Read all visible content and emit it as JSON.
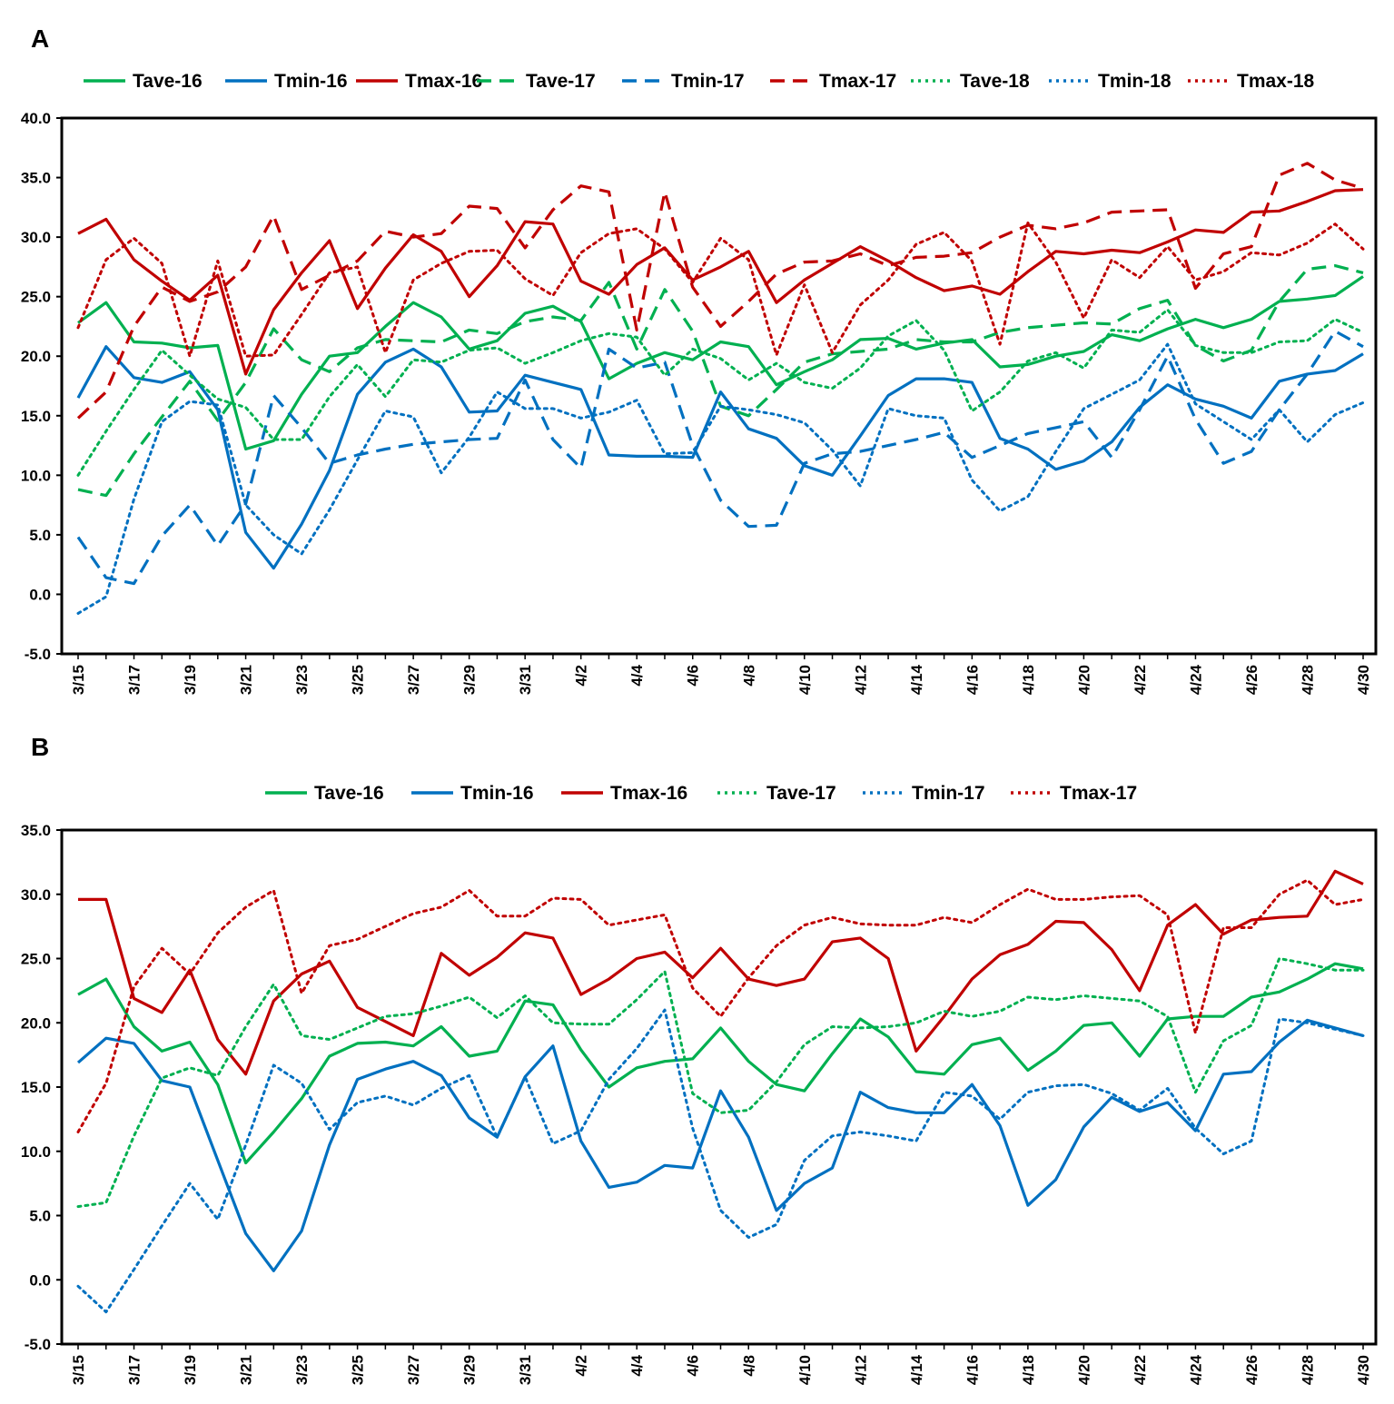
{
  "chart_data": [
    {
      "panel": "A",
      "type": "line",
      "ylim": [
        -5,
        40
      ],
      "ytick_labels": [
        "-5.0",
        "0.0",
        "5.0",
        "10.0",
        "15.0",
        "20.0",
        "25.0",
        "30.0",
        "35.0",
        "40.0"
      ],
      "xtick_labels": [
        "3/15",
        "3/17",
        "3/19",
        "3/21",
        "3/23",
        "3/25",
        "3/27",
        "3/29",
        "3/31",
        "4/2",
        "4/4",
        "4/6",
        "4/8",
        "4/10",
        "4/12",
        "4/14",
        "4/16",
        "4/18",
        "4/20",
        "4/22",
        "4/24",
        "4/26",
        "4/28",
        "4/30"
      ],
      "legend_position": "top",
      "series": [
        {
          "name": "Tave-16",
          "color": "#00B050",
          "style": "solid",
          "values": [
            22.8,
            24.5,
            21.2,
            21.1,
            20.7,
            20.9,
            12.2,
            12.9,
            16.8,
            20.0,
            20.3,
            22.5,
            24.5,
            23.3,
            20.6,
            21.3,
            23.6,
            24.2,
            22.9,
            18.1,
            19.4,
            20.3,
            19.7,
            21.2,
            20.8,
            17.6,
            18.7,
            19.7,
            21.4,
            21.5,
            20.6,
            21.1,
            21.4,
            19.1,
            19.3,
            20.0,
            20.4,
            21.8,
            21.3,
            22.3,
            23.1,
            22.4,
            23.1,
            24.6,
            24.8,
            25.1,
            26.7
          ]
        },
        {
          "name": "Tmin-16",
          "color": "#0070C0",
          "style": "solid",
          "values": [
            16.5,
            20.8,
            18.2,
            17.8,
            18.7,
            15.5,
            5.2,
            2.2,
            5.9,
            10.4,
            16.8,
            19.5,
            20.6,
            19.1,
            15.3,
            15.4,
            18.4,
            17.8,
            17.2,
            11.7,
            11.6,
            11.6,
            11.5,
            17.0,
            13.9,
            13.1,
            10.8,
            10.0,
            13.3,
            16.7,
            18.1,
            18.1,
            17.8,
            13.1,
            12.2,
            10.5,
            11.2,
            12.8,
            15.7,
            17.6,
            16.4,
            15.8,
            14.8,
            17.9,
            18.5,
            18.8,
            20.2
          ]
        },
        {
          "name": "Tmax-16",
          "color": "#C00000",
          "style": "solid",
          "values": [
            30.3,
            31.5,
            28.1,
            26.3,
            24.7,
            26.8,
            18.5,
            23.9,
            27.0,
            29.7,
            24.0,
            27.4,
            30.2,
            28.8,
            25.0,
            27.6,
            31.3,
            31.1,
            26.3,
            25.2,
            27.7,
            29.1,
            26.4,
            27.5,
            28.8,
            24.5,
            26.4,
            27.8,
            29.2,
            28.0,
            26.6,
            25.5,
            25.9,
            25.2,
            27.1,
            28.8,
            28.6,
            28.9,
            28.7,
            29.6,
            30.6,
            30.4,
            32.1,
            32.2,
            33.0,
            33.9,
            34.0
          ]
        },
        {
          "name": "Tave-17",
          "color": "#00B050",
          "style": "dashed",
          "values": [
            8.8,
            8.3,
            11.8,
            14.9,
            17.9,
            14.6,
            17.8,
            22.3,
            19.7,
            18.7,
            20.7,
            21.4,
            21.3,
            21.2,
            22.2,
            21.9,
            22.9,
            23.3,
            23.0,
            26.2,
            20.6,
            25.6,
            22.1,
            15.8,
            15.0,
            17.2,
            19.5,
            20.2,
            20.4,
            20.6,
            21.4,
            21.2,
            21.2,
            22.0,
            22.4,
            22.6,
            22.8,
            22.7,
            24.0,
            24.7,
            20.9,
            19.6,
            20.5,
            24.6,
            27.3,
            27.6,
            27.0
          ]
        },
        {
          "name": "Tmin-17",
          "color": "#0070C0",
          "style": "dashed",
          "values": [
            4.8,
            1.4,
            0.9,
            4.9,
            7.5,
            4.1,
            7.6,
            16.7,
            14.0,
            11.0,
            11.7,
            12.2,
            12.6,
            12.8,
            13.0,
            13.1,
            18.0,
            13.0,
            10.6,
            20.6,
            19.0,
            19.5,
            12.5,
            7.9,
            5.7,
            5.8,
            11.0,
            11.8,
            12.0,
            12.5,
            13.0,
            13.6,
            11.5,
            12.5,
            13.5,
            14.0,
            14.5,
            11.5,
            15.5,
            20.0,
            14.7,
            11.0,
            12.0,
            15.5,
            18.5,
            22.1,
            20.8
          ]
        },
        {
          "name": "Tmax-17",
          "color": "#C00000",
          "style": "dashed",
          "values": [
            14.8,
            17.0,
            22.5,
            25.8,
            24.6,
            25.4,
            27.5,
            31.8,
            25.6,
            26.8,
            28.0,
            30.5,
            30.0,
            30.3,
            32.6,
            32.4,
            29.1,
            32.3,
            34.3,
            33.8,
            22.2,
            33.8,
            25.8,
            22.5,
            24.6,
            26.9,
            27.9,
            28.0,
            28.6,
            27.6,
            28.3,
            28.4,
            28.7,
            30.0,
            31.0,
            30.7,
            31.2,
            32.1,
            32.2,
            32.3,
            25.7,
            28.6,
            29.2,
            35.2,
            36.2,
            34.8,
            34.1
          ]
        },
        {
          "name": "Tave-18",
          "color": "#00B050",
          "style": "dotted",
          "values": [
            10.0,
            13.7,
            17.2,
            20.5,
            18.4,
            16.4,
            15.7,
            13.0,
            13.0,
            16.6,
            19.3,
            16.6,
            19.7,
            19.5,
            20.5,
            20.7,
            19.4,
            20.3,
            21.3,
            21.9,
            21.6,
            18.4,
            20.6,
            19.8,
            18.0,
            19.4,
            17.8,
            17.3,
            19.0,
            21.7,
            23.0,
            20.5,
            15.4,
            17.0,
            19.6,
            20.3,
            19.0,
            22.2,
            22.0,
            23.9,
            20.9,
            20.3,
            20.3,
            21.2,
            21.3,
            23.1,
            22.0
          ]
        },
        {
          "name": "Tmin-18",
          "color": "#0070C0",
          "style": "dotted",
          "values": [
            -1.6,
            -0.2,
            8.0,
            14.5,
            16.2,
            15.9,
            7.5,
            5.0,
            3.4,
            7.1,
            11.3,
            15.4,
            14.9,
            10.2,
            13.2,
            17.0,
            15.6,
            15.6,
            14.8,
            15.3,
            16.3,
            11.8,
            11.9,
            15.8,
            15.5,
            15.1,
            14.4,
            12.1,
            9.1,
            15.6,
            15.0,
            14.8,
            9.6,
            7.0,
            8.2,
            12.0,
            15.6,
            16.8,
            18.0,
            21.0,
            16.0,
            14.5,
            13.0,
            15.5,
            12.8,
            15.1,
            16.1
          ]
        },
        {
          "name": "Tmax-18",
          "color": "#C00000",
          "style": "dotted",
          "values": [
            22.4,
            28.1,
            29.9,
            27.8,
            20.0,
            28.0,
            20.0,
            20.1,
            23.5,
            27.0,
            27.5,
            20.3,
            26.4,
            27.8,
            28.8,
            28.9,
            26.5,
            25.1,
            28.7,
            30.3,
            30.7,
            29.0,
            26.2,
            29.9,
            28.1,
            20.1,
            26.0,
            20.3,
            24.3,
            26.4,
            29.4,
            30.4,
            28.0,
            21.0,
            31.2,
            27.9,
            23.2,
            28.1,
            26.6,
            29.2,
            26.4,
            27.1,
            28.7,
            28.5,
            29.5,
            31.1,
            29.0
          ]
        }
      ]
    },
    {
      "panel": "B",
      "type": "line",
      "ylim": [
        -5,
        35
      ],
      "ytick_labels": [
        "-5.0",
        "0.0",
        "5.0",
        "10.0",
        "15.0",
        "20.0",
        "25.0",
        "30.0",
        "35.0"
      ],
      "xtick_labels": [
        "3/15",
        "3/17",
        "3/19",
        "3/21",
        "3/23",
        "3/25",
        "3/27",
        "3/29",
        "3/31",
        "4/2",
        "4/4",
        "4/6",
        "4/8",
        "4/10",
        "4/12",
        "4/14",
        "4/16",
        "4/18",
        "4/20",
        "4/22",
        "4/24",
        "4/26",
        "4/28",
        "4/30"
      ],
      "legend_position": "top",
      "series": [
        {
          "name": "Tave-16",
          "color": "#00B050",
          "style": "solid",
          "values": [
            22.2,
            23.4,
            19.7,
            17.8,
            18.5,
            15.2,
            9.1,
            11.5,
            14.1,
            17.4,
            18.4,
            18.5,
            18.2,
            19.7,
            17.4,
            17.8,
            21.7,
            21.4,
            17.9,
            15.0,
            16.5,
            17.0,
            17.2,
            19.6,
            17.0,
            15.2,
            14.7,
            17.6,
            20.3,
            18.9,
            16.2,
            16.0,
            18.3,
            18.8,
            16.3,
            17.8,
            19.8,
            20.0,
            17.4,
            20.3,
            20.5,
            20.5,
            22.0,
            22.4,
            23.4,
            24.6,
            24.2
          ]
        },
        {
          "name": "Tmin-16",
          "color": "#0070C0",
          "style": "solid",
          "values": [
            16.9,
            18.8,
            18.4,
            15.5,
            15.0,
            9.3,
            3.6,
            0.7,
            3.8,
            10.5,
            15.6,
            16.4,
            17.0,
            15.9,
            12.6,
            11.1,
            15.8,
            18.2,
            10.8,
            7.2,
            7.6,
            8.9,
            8.7,
            14.7,
            11.1,
            5.4,
            7.5,
            8.7,
            14.6,
            13.4,
            13.0,
            13.0,
            15.2,
            12.0,
            5.8,
            7.8,
            11.9,
            14.2,
            13.1,
            13.8,
            11.6,
            16.0,
            16.2,
            18.5,
            20.2,
            19.6,
            19.0
          ]
        },
        {
          "name": "Tmax-16",
          "color": "#C00000",
          "style": "solid",
          "values": [
            29.6,
            29.6,
            21.9,
            20.8,
            24.1,
            18.7,
            16.0,
            21.7,
            23.8,
            24.8,
            21.2,
            20.1,
            19.0,
            25.4,
            23.7,
            25.1,
            27.0,
            26.6,
            22.2,
            23.4,
            25.0,
            25.5,
            23.5,
            25.8,
            23.4,
            22.9,
            23.4,
            26.3,
            26.6,
            25.0,
            17.8,
            20.5,
            23.4,
            25.3,
            26.1,
            27.9,
            27.8,
            25.7,
            22.5,
            27.6,
            29.2,
            26.9,
            28.0,
            28.2,
            28.3,
            31.8,
            30.8
          ]
        },
        {
          "name": "Tave-17",
          "color": "#00B050",
          "style": "dotted",
          "values": [
            5.7,
            6.0,
            11.2,
            15.7,
            16.5,
            15.9,
            19.7,
            23.0,
            19.0,
            18.7,
            19.6,
            20.5,
            20.7,
            21.3,
            22.0,
            20.4,
            22.1,
            20.0,
            19.9,
            19.9,
            21.8,
            24.0,
            14.5,
            13.0,
            13.2,
            15.4,
            18.3,
            19.7,
            19.6,
            19.7,
            20.0,
            20.9,
            20.5,
            20.9,
            22.0,
            21.8,
            22.1,
            21.9,
            21.7,
            20.5,
            14.6,
            18.6,
            19.8,
            25.0,
            24.6,
            24.1,
            24.1
          ]
        },
        {
          "name": "Tmin-17",
          "color": "#0070C0",
          "style": "dotted",
          "values": [
            -0.5,
            -2.5,
            0.8,
            4.2,
            7.5,
            4.7,
            10.5,
            16.7,
            15.3,
            11.7,
            13.8,
            14.3,
            13.6,
            14.9,
            15.9,
            11.1,
            15.8,
            10.6,
            11.6,
            15.6,
            18.0,
            21.0,
            11.8,
            5.4,
            3.3,
            4.3,
            9.3,
            11.2,
            11.5,
            11.2,
            10.8,
            14.6,
            14.3,
            12.5,
            14.6,
            15.1,
            15.2,
            14.5,
            13.2,
            14.9,
            11.8,
            9.8,
            10.8,
            20.3,
            20.0,
            19.5,
            19.0
          ]
        },
        {
          "name": "Tmax-17",
          "color": "#C00000",
          "style": "dotted",
          "values": [
            11.5,
            15.3,
            22.8,
            25.8,
            23.8,
            27.0,
            29.0,
            30.3,
            22.3,
            26.0,
            26.5,
            27.5,
            28.5,
            29.0,
            30.3,
            28.3,
            28.3,
            29.7,
            29.6,
            27.6,
            28.0,
            28.4,
            22.7,
            20.5,
            23.5,
            26.0,
            27.6,
            28.2,
            27.7,
            27.6,
            27.6,
            28.2,
            27.8,
            29.2,
            30.4,
            29.6,
            29.6,
            29.8,
            29.9,
            28.4,
            19.2,
            27.4,
            27.4,
            30.0,
            31.1,
            29.2,
            29.6
          ]
        }
      ]
    }
  ]
}
